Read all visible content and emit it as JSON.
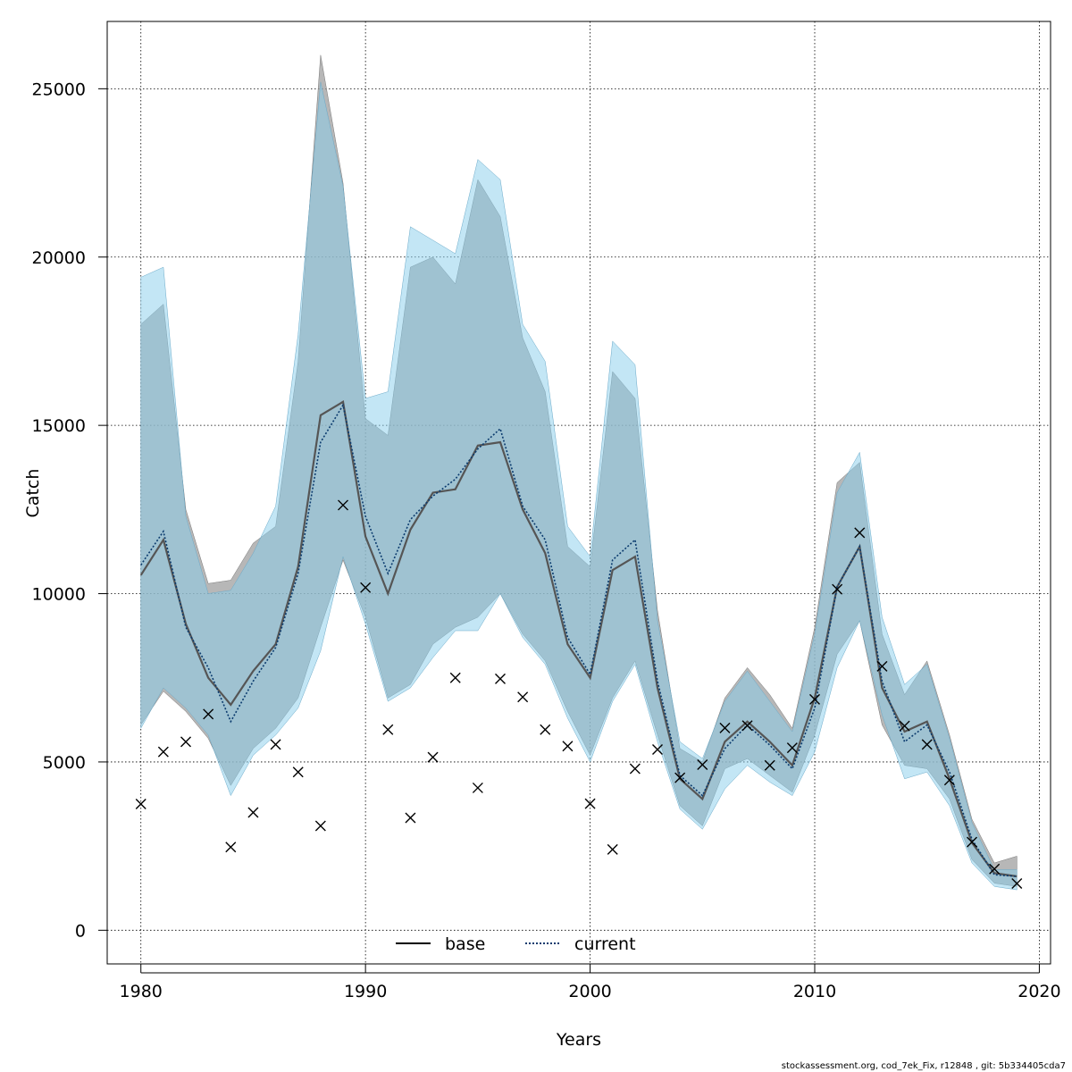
{
  "chart_data": {
    "type": "line",
    "xlabel": "Years",
    "ylabel": "Catch",
    "xlim": [
      1978.5,
      2020.5
    ],
    "ylim": [
      -1000,
      27000
    ],
    "x_ticks": [
      1980,
      1990,
      2000,
      2010,
      2020
    ],
    "y_ticks": [
      0,
      5000,
      10000,
      15000,
      20000,
      25000
    ],
    "x_tick_labels": [
      "1980",
      "1990",
      "2000",
      "2010",
      "2020"
    ],
    "y_tick_labels": [
      "0",
      "5000",
      "10000",
      "15000",
      "20000",
      "25000"
    ],
    "grid": "dotted",
    "legend_position": "bottom",
    "years": [
      1980,
      1981,
      1982,
      1983,
      1984,
      1985,
      1986,
      1987,
      1988,
      1989,
      1990,
      1991,
      1992,
      1993,
      1994,
      1995,
      1996,
      1997,
      1998,
      1999,
      2000,
      2001,
      2002,
      2003,
      2004,
      2005,
      2006,
      2007,
      2008,
      2009,
      2010,
      2011,
      2012,
      2013,
      2014,
      2015,
      2016,
      2017,
      2018,
      2019
    ],
    "series": [
      {
        "name": "base",
        "line_style": "solid",
        "color": "#000000",
        "band_color": "#999999",
        "values": [
          10550,
          11600,
          9100,
          7500,
          6700,
          7700,
          8500,
          10800,
          15300,
          15700,
          11700,
          10000,
          11900,
          13000,
          13100,
          14400,
          14500,
          12500,
          11200,
          8500,
          7500,
          10700,
          11100,
          7200,
          4500,
          3900,
          5600,
          6200,
          5600,
          4900,
          6900,
          10200,
          11400,
          7200,
          5900,
          6200,
          4500,
          2600,
          1700,
          1600
        ],
        "upper": [
          18000,
          18600,
          12500,
          10300,
          10400,
          11500,
          12000,
          16900,
          26000,
          22200,
          15200,
          14700,
          19700,
          20000,
          19200,
          22300,
          21200,
          17600,
          16000,
          11400,
          10800,
          16600,
          15800,
          9500,
          5400,
          5000,
          6900,
          7800,
          7000,
          6000,
          9000,
          13300,
          13900,
          8800,
          7000,
          8000,
          5800,
          3300,
          2000,
          2200
        ],
        "lower": [
          6100,
          7100,
          6500,
          5700,
          4300,
          5400,
          6000,
          6900,
          9000,
          11000,
          9300,
          6900,
          7300,
          8500,
          9000,
          9300,
          10000,
          8800,
          8000,
          6500,
          5200,
          6900,
          8000,
          5800,
          3700,
          3100,
          4800,
          5100,
          4600,
          4100,
          5800,
          8200,
          9200,
          6100,
          4900,
          4800,
          3900,
          2100,
          1400,
          1300
        ]
      },
      {
        "name": "current",
        "line_style": "dotted",
        "color": "#0b3b6e",
        "band_color": "#87ceeb",
        "values": [
          10850,
          11850,
          9000,
          7800,
          6200,
          7400,
          8400,
          10600,
          14500,
          15600,
          12300,
          10600,
          12200,
          12900,
          13400,
          14300,
          14900,
          12600,
          11600,
          8700,
          7600,
          11000,
          11600,
          7400,
          4600,
          4000,
          5400,
          6100,
          5500,
          4800,
          6600,
          10200,
          11400,
          7400,
          5600,
          6100,
          4700,
          2700,
          1650,
          1600
        ],
        "upper": [
          19400,
          19700,
          12300,
          10000,
          10100,
          11200,
          12600,
          17700,
          25200,
          22100,
          15800,
          16000,
          20900,
          20500,
          20100,
          22900,
          22300,
          18000,
          16900,
          12000,
          11100,
          17500,
          16800,
          9200,
          5600,
          5100,
          6800,
          7700,
          6800,
          5900,
          8800,
          13000,
          14200,
          9300,
          7300,
          7900,
          5700,
          3200,
          1800,
          1800
        ],
        "lower": [
          6000,
          7200,
          6600,
          5800,
          4000,
          5200,
          5800,
          6600,
          8300,
          11100,
          9100,
          6800,
          7200,
          8100,
          8900,
          8900,
          10000,
          8700,
          7900,
          6300,
          5000,
          6800,
          7900,
          5600,
          3600,
          3000,
          4200,
          4900,
          4400,
          4000,
          5300,
          7800,
          9200,
          6400,
          4500,
          4700,
          3700,
          2000,
          1300,
          1200
        ]
      }
    ],
    "observations": {
      "marker": "x",
      "years": [
        1980,
        1981,
        1982,
        1983,
        1984,
        1985,
        1986,
        1987,
        1988,
        1989,
        1990,
        1991,
        1992,
        1993,
        1994,
        1995,
        1996,
        1997,
        1998,
        1999,
        2000,
        2001,
        2002,
        2003,
        2004,
        2005,
        2006,
        2007,
        2008,
        2009,
        2010,
        2011,
        2012,
        2013,
        2014,
        2015,
        2016,
        2017,
        2018,
        2019
      ],
      "values": [
        3750,
        5300,
        5600,
        6420,
        2470,
        3500,
        5520,
        4700,
        3100,
        12630,
        10180,
        5960,
        3340,
        5140,
        7500,
        4230,
        7470,
        6930,
        5960,
        5470,
        3760,
        2400,
        4800,
        5370,
        4530,
        4920,
        6010,
        6080,
        4900,
        5420,
        6860,
        10130,
        11810,
        7840,
        6070,
        5520,
        4460,
        2620,
        1820,
        1390
      ]
    },
    "legend": [
      {
        "label": "base",
        "line_style": "solid"
      },
      {
        "label": "current",
        "line_style": "dotted"
      }
    ]
  },
  "footer": {
    "credit": "stockassessment.org, cod_7ek_Fix, r12848 , git: 5b334405cda7"
  }
}
